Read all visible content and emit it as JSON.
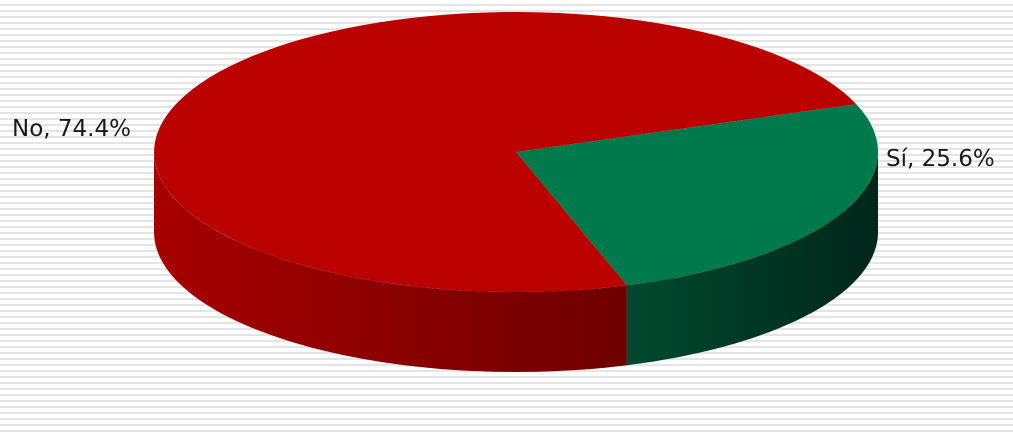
{
  "chart_data": {
    "type": "pie",
    "style": "3d",
    "title": "",
    "legend": "none",
    "slices": [
      {
        "label": "No",
        "value": 74.4,
        "label_text": "No, 74.4%",
        "color": "#bb0000",
        "side_dark": "#6e0000",
        "side_light": "#a80000"
      },
      {
        "label": "Sí",
        "value": 25.6,
        "label_text": "Sí, 25.6%",
        "color": "#007a4d",
        "side_dark": "#00261a",
        "side_light": "#004a30"
      }
    ]
  }
}
